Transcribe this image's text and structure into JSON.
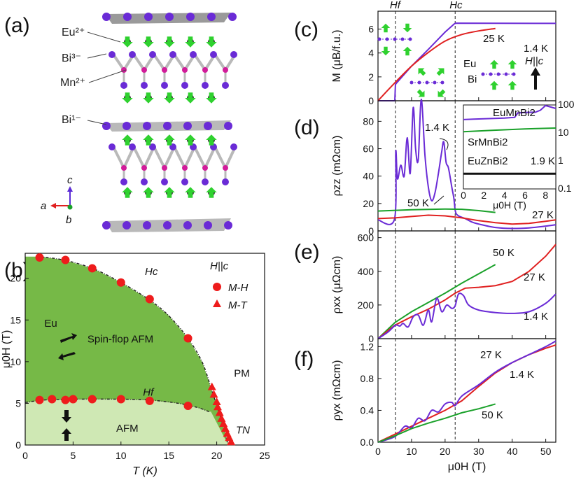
{
  "figure": {
    "panel_labels": [
      "(a)",
      "(b)",
      "(c)",
      "(d)",
      "(e)",
      "(f)"
    ],
    "panel_a": {
      "ions": [
        "Eu²⁺",
        "Bi³⁻",
        "Mn²⁺",
        "Bi¹⁻"
      ],
      "axes_labels": {
        "a": "a",
        "b": "b",
        "c": "c"
      },
      "colors": {
        "eu_bi": "#6a2bd6",
        "mn": "#d21c9a",
        "spin": "#2fd12f",
        "bond": "#b9b9b9"
      }
    }
  },
  "chart_data": [
    {
      "id": "b",
      "type": "scatter",
      "title": "",
      "xlabel": "T (K)",
      "ylabel": "μ0H (T)",
      "xlim": [
        0,
        25
      ],
      "ylim": [
        0,
        23
      ],
      "xticks": [
        0,
        5,
        10,
        15,
        20,
        25
      ],
      "yticks": [
        0,
        5,
        10,
        15,
        20
      ],
      "legend_title": "H||c",
      "legend": [
        "M-H",
        "M-T"
      ],
      "labels": {
        "hc": "Hc",
        "hf": "Hf",
        "spin_flop": "Spin-flop AFM",
        "afm": "AFM",
        "pm": "PM",
        "tn": "TN",
        "eu": "Eu"
      },
      "colors": {
        "spin_flop": "#76b947",
        "afm": "#cfe8b4",
        "marker": "#ee1c1c"
      },
      "series": [
        {
          "name": "M-H Hc",
          "x": [
            1.5,
            4.2,
            7.0,
            10.0,
            13.0,
            17.0
          ],
          "y": [
            22.5,
            22.2,
            21.2,
            19.5,
            17.5,
            12.8
          ]
        },
        {
          "name": "M-H Hf",
          "x": [
            1.5,
            2.8,
            4.2,
            5.0,
            7.0,
            10.0,
            13.0,
            17.0
          ],
          "y": [
            5.4,
            5.5,
            5.4,
            5.5,
            5.5,
            5.5,
            5.3,
            4.7
          ]
        },
        {
          "name": "M-T",
          "x": [
            19.5,
            19.7,
            20.0,
            20.1,
            20.3,
            20.5,
            20.7,
            20.9,
            21.1,
            21.3,
            21.5
          ],
          "y": [
            7.0,
            6.1,
            5.2,
            4.6,
            3.9,
            3.2,
            2.6,
            2.0,
            1.4,
            0.9,
            0.4
          ]
        }
      ],
      "hc_line": {
        "x": [
          1.5,
          4,
          7,
          10,
          13,
          15,
          17,
          18.5,
          19.5,
          20.5,
          21.2
        ],
        "y": [
          22.6,
          22.2,
          21.2,
          19.5,
          17.4,
          15.5,
          12.8,
          9.9,
          6.5,
          3.0,
          0
        ]
      },
      "hf_line": {
        "x": [
          0,
          2,
          5,
          10,
          13,
          16,
          18,
          19.2
        ],
        "y": [
          5.1,
          5.4,
          5.5,
          5.5,
          5.4,
          5.0,
          4.5,
          4.0
        ]
      }
    },
    {
      "id": "c",
      "type": "line",
      "ylabel": "M (μB/f.u.)",
      "xlim": [
        0,
        53
      ],
      "ylim": [
        0,
        7.5
      ],
      "yticks": [
        0,
        2,
        4,
        6
      ],
      "markers": {
        "hf": "Hf",
        "hc": "Hc",
        "hf_x": 5.2,
        "hc_x": 23
      },
      "inset_labels": {
        "eu": "Eu",
        "bi": "Bi",
        "field": "H||c"
      },
      "series": [
        {
          "name": "1.4 K",
          "color": "#6a2bd6",
          "x": [
            0,
            5,
            5.2,
            5.4,
            10,
            15,
            20,
            22.8,
            23.2,
            53
          ],
          "y": [
            0,
            0,
            1.35,
            1.45,
            2.9,
            4.3,
            5.75,
            6.45,
            6.5,
            6.48
          ]
        },
        {
          "name": "25 K",
          "color": "#e02020",
          "x": [
            0,
            5,
            10,
            15,
            20,
            25,
            30,
            35
          ],
          "y": [
            0,
            1.5,
            2.9,
            4.05,
            5.0,
            5.55,
            5.85,
            6.05
          ]
        }
      ]
    },
    {
      "id": "d",
      "type": "line",
      "ylabel": "ρzz (mΩcm)",
      "xlim": [
        0,
        53
      ],
      "ylim": [
        0,
        95
      ],
      "yticks": [
        0,
        20,
        40,
        60,
        80
      ],
      "series": [
        {
          "name": "1.4 K",
          "color": "#6a2bd6",
          "x": [
            0,
            4.9,
            5.3,
            5.8,
            6.8,
            7.8,
            8.7,
            9.6,
            10.5,
            11.2,
            12,
            12.9,
            14,
            15,
            16,
            17,
            18,
            19,
            19.6,
            20.3,
            21,
            22,
            22.6,
            23.1,
            24,
            26,
            28,
            30,
            35,
            40,
            45,
            50,
            53
          ],
          "y": [
            8,
            8.5,
            58,
            38,
            48,
            40,
            68,
            42,
            90,
            60,
            52,
            96,
            55,
            32,
            22,
            28,
            42,
            58,
            65,
            50,
            46,
            32,
            24,
            14,
            11,
            9,
            6.5,
            5,
            2.5,
            1.8,
            2.2,
            3.5,
            4.5
          ]
        },
        {
          "name": "50 K",
          "color": "#1aa12a",
          "x": [
            0,
            10,
            20,
            25,
            30,
            35
          ],
          "y": [
            14.5,
            15.5,
            16,
            15.8,
            14.8,
            13.5
          ]
        },
        {
          "name": "27 K",
          "color": "#e02020",
          "x": [
            0,
            5,
            10,
            15,
            20,
            25,
            30,
            35,
            40,
            45,
            50,
            53
          ],
          "y": [
            9,
            9.5,
            10.5,
            11.5,
            11,
            9.5,
            7.5,
            6,
            5,
            5.5,
            7,
            8
          ]
        }
      ],
      "labels": {
        "t14": "1.4 K",
        "t50": "50 K",
        "t27": "27 K"
      },
      "inset": {
        "type": "line",
        "xlabel": "μ0H (T)",
        "xlim": [
          0,
          9
        ],
        "ylim_log": [
          0.1,
          100
        ],
        "xticks": [
          0,
          2,
          4,
          6,
          8
        ],
        "yticks": [
          "0.1",
          "1",
          "10",
          "100"
        ],
        "temperature": "1.9 K",
        "series": [
          {
            "name": "EuMnBi2",
            "color": "#6a2bd6",
            "x": [
              0,
              1,
              2,
              3,
              4,
              5,
              5.3,
              6,
              7,
              7.5,
              8,
              9
            ],
            "y": [
              30,
              31,
              32,
              33,
              34,
              36,
              52,
              54,
              55,
              65,
              95,
              75
            ]
          },
          {
            "name": "SrMnBi2",
            "color": "#1aa12a",
            "x": [
              0,
              3,
              6,
              9
            ],
            "y": [
              11,
              12.5,
              14,
              15
            ]
          },
          {
            "name": "EuZnBi2",
            "color": "#111111",
            "x": [
              0,
              9
            ],
            "y": [
              0.35,
              0.35
            ]
          }
        ]
      }
    },
    {
      "id": "e",
      "type": "line",
      "ylabel": "ρxx (μΩcm)",
      "xlim": [
        0,
        53
      ],
      "ylim": [
        0,
        640
      ],
      "yticks": [
        0,
        200,
        400,
        600
      ],
      "labels": {
        "t50": "50 K",
        "t27": "27 K",
        "t14": "1.4 K"
      },
      "series": [
        {
          "name": "50 K",
          "color": "#1aa12a",
          "x": [
            0,
            5,
            10,
            15,
            20,
            25,
            30,
            35
          ],
          "y": [
            0,
            95,
            160,
            215,
            270,
            330,
            385,
            440
          ]
        },
        {
          "name": "27 K",
          "color": "#e02020",
          "x": [
            0,
            5,
            10,
            15,
            20,
            23,
            26,
            30,
            35,
            40,
            45,
            50,
            53
          ],
          "y": [
            0,
            80,
            130,
            175,
            230,
            270,
            300,
            305,
            315,
            340,
            400,
            490,
            560
          ]
        },
        {
          "name": "1.4 K",
          "color": "#6a2bd6",
          "x": [
            0,
            3,
            5.2,
            6.5,
            7.5,
            9,
            10.5,
            12,
            13.5,
            15,
            16,
            17.5,
            19,
            20.5,
            22,
            23,
            24,
            25.5,
            27,
            30,
            35,
            40,
            45,
            50,
            53
          ],
          "y": [
            0,
            40,
            80,
            75,
            90,
            70,
            130,
            140,
            80,
            170,
            100,
            240,
            160,
            200,
            180,
            195,
            265,
            255,
            200,
            170,
            155,
            150,
            160,
            210,
            265
          ]
        }
      ]
    },
    {
      "id": "f",
      "type": "line",
      "xlabel": "μ0H (T)",
      "ylabel": "ρyx (mΩcm)",
      "xlim": [
        0,
        53
      ],
      "ylim": [
        0,
        1.3
      ],
      "xticks": [
        0,
        10,
        20,
        30,
        40,
        50
      ],
      "yticks": [
        "0.0",
        "0.4",
        "0.8",
        "1.2"
      ],
      "labels": {
        "t27": "27 K",
        "t14": "1.4 K",
        "t50": "50 K"
      },
      "series": [
        {
          "name": "27 K",
          "color": "#e02020",
          "x": [
            0,
            5,
            10,
            15,
            20,
            25,
            30,
            35,
            40,
            45,
            50,
            53
          ],
          "y": [
            0,
            0.1,
            0.2,
            0.3,
            0.4,
            0.52,
            0.7,
            0.87,
            1.0,
            1.1,
            1.18,
            1.22
          ]
        },
        {
          "name": "1.4 K",
          "color": "#6a2bd6",
          "x": [
            0,
            5,
            8,
            10,
            12,
            14,
            16,
            18,
            20,
            22,
            23,
            25,
            30,
            35,
            40,
            45,
            50,
            53
          ],
          "y": [
            0,
            0.07,
            0.2,
            0.18,
            0.3,
            0.27,
            0.4,
            0.38,
            0.48,
            0.5,
            0.46,
            0.58,
            0.72,
            0.88,
            1.0,
            1.1,
            1.2,
            1.27
          ]
        },
        {
          "name": "50 K",
          "color": "#1aa12a",
          "x": [
            0,
            5,
            10,
            15,
            20,
            25,
            30,
            35
          ],
          "y": [
            0,
            0.08,
            0.17,
            0.24,
            0.3,
            0.37,
            0.42,
            0.48
          ]
        }
      ]
    }
  ]
}
